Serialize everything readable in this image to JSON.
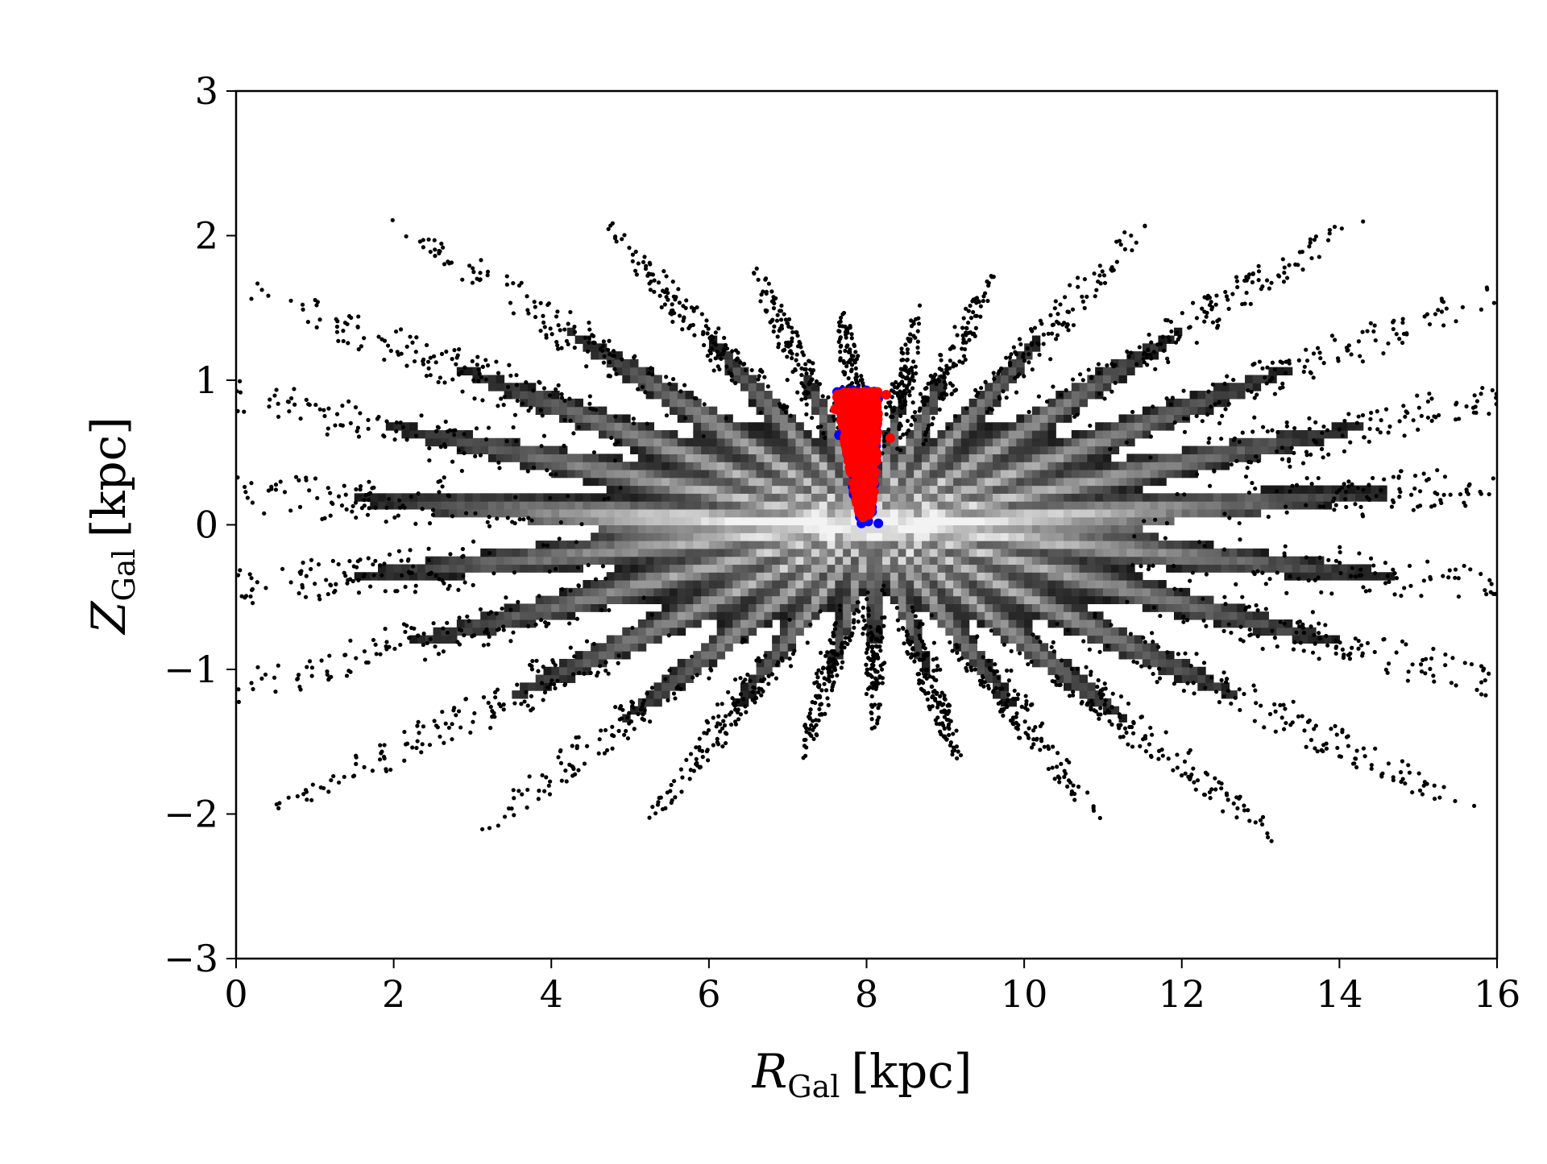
{
  "chart_data": {
    "type": "scatter",
    "title": "",
    "xlabel": {
      "main": "R",
      "sub": "Gal",
      "unit": "[kpc]"
    },
    "ylabel": {
      "main": "Z",
      "sub": "Gal",
      "unit": "[kpc]"
    },
    "xlim": [
      0,
      16
    ],
    "ylim": [
      -3,
      3
    ],
    "xticks": [
      0,
      2,
      4,
      6,
      8,
      10,
      12,
      14,
      16
    ],
    "yticks": [
      -3,
      -2,
      -1,
      0,
      1,
      2,
      3
    ],
    "xtick_labels": [
      "0",
      "2",
      "4",
      "6",
      "8",
      "10",
      "12",
      "14",
      "16"
    ],
    "ytick_labels": [
      "−3",
      "−2",
      "−1",
      "0",
      "1",
      "2",
      "3"
    ],
    "grid": false,
    "legend": "none",
    "background_distribution": {
      "kind": "2D density histogram with black scatter outskirts",
      "colormap": "white (high density) to black (low density)",
      "center": [
        8.1,
        0.0
      ],
      "spokes_deg": [
        5,
        16,
        28,
        42,
        58,
        72,
        82,
        96,
        108,
        122,
        138,
        152,
        164,
        176,
        188,
        200,
        214,
        228,
        242,
        258,
        270,
        284,
        298,
        312,
        326,
        340,
        352
      ],
      "x_extent": [
        0,
        16
      ],
      "y_extent": [
        -3,
        3
      ]
    },
    "series": [
      {
        "color": "#0000ff",
        "marker": "o",
        "region_x": [
          7.6,
          8.2
        ],
        "region_y": [
          0.0,
          0.93
        ],
        "sample_points": [
          [
            8.0,
            0.93
          ],
          [
            8.15,
            0.01
          ],
          [
            7.65,
            0.62
          ],
          [
            8.1,
            0.28
          ],
          [
            7.75,
            0.78
          ],
          [
            7.95,
            0.12
          ]
        ]
      },
      {
        "color": "#ff0000",
        "marker": "o",
        "region_x": [
          7.55,
          8.35
        ],
        "region_y": [
          0.05,
          0.92
        ],
        "sample_points": [
          [
            7.6,
            0.8
          ],
          [
            7.8,
            0.9
          ],
          [
            8.05,
            0.88
          ],
          [
            8.25,
            0.9
          ],
          [
            8.3,
            0.6
          ],
          [
            7.9,
            0.1
          ]
        ]
      }
    ]
  }
}
